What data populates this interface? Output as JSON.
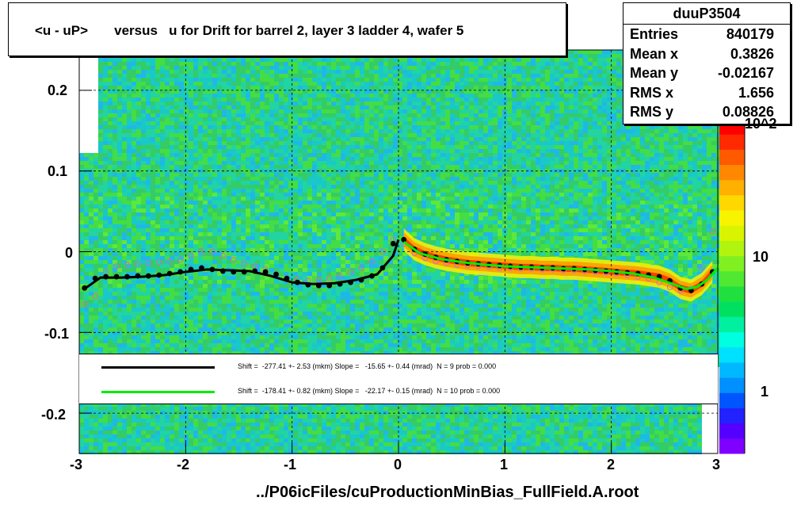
{
  "title": "<u - uP>       versus   u for Drift for barrel 2, layer 3 ladder 4, wafer 5",
  "stats": {
    "name": "duuP3504",
    "rows": [
      {
        "label": "Entries",
        "value": "840179"
      },
      {
        "label": "Mean x",
        "value": "0.3826"
      },
      {
        "label": "Mean y",
        "value": "-0.02167"
      },
      {
        "label": "RMS x",
        "value": "1.656"
      },
      {
        "label": "RMS y",
        "value": "0.08826"
      }
    ]
  },
  "fits": [
    {
      "color": "#000000",
      "text": "Shift =  -277.41 +- 2.53 (mkm) Slope =   -15.65 +- 0.44 (mrad)  N = 9 prob = 0.000"
    },
    {
      "color": "#00ee00",
      "text": "Shift =  -178.41 +- 0.82 (mkm) Slope =   -22.17 +- 0.15 (mrad)  N = 10 prob = 0.000"
    }
  ],
  "x_title": "../P06icFiles/cuProductionMinBias_FullField.A.root",
  "colors": {
    "band_red": "#ff2a00",
    "band_orange": "#ff9900",
    "band_yellow": "#ffee00",
    "background_green": "#33cc66"
  },
  "chart_data": {
    "type": "heatmap",
    "title": "<u - uP>       versus   u for Drift for barrel 2, layer 3 ladder 4, wafer 5",
    "xlabel": "../P06icFiles/cuProductionMinBias_FullField.A.root",
    "ylabel": "",
    "xlim": [
      -3,
      3
    ],
    "ylim": [
      -0.25,
      0.25
    ],
    "x_ticks": [
      "-3",
      "-2",
      "-1",
      "0",
      "1",
      "2",
      "3"
    ],
    "y_ticks": [
      "0.2",
      "0.1",
      "0",
      "-0.1",
      "-0.2"
    ],
    "colorbar": {
      "scale": "log",
      "ticks": [
        "1",
        "10",
        "10^2"
      ]
    },
    "grid": true,
    "series": [
      {
        "kind": "profile-left",
        "x": [
          -2.95,
          -2.85,
          -2.75,
          -2.65,
          -2.55,
          -2.45,
          -2.35,
          -2.25,
          -2.15,
          -2.05,
          -1.95,
          -1.85,
          -1.75,
          -1.65,
          -1.55,
          -1.45,
          -1.35,
          -1.25,
          -1.15,
          -1.05,
          -0.95,
          -0.85,
          -0.75,
          -0.65,
          -0.55,
          -0.45,
          -0.35,
          -0.25,
          -0.15,
          -0.05
        ],
        "y": [
          -0.045,
          -0.033,
          -0.031,
          -0.031,
          -0.031,
          -0.03,
          -0.03,
          -0.029,
          -0.027,
          -0.025,
          -0.022,
          -0.02,
          -0.022,
          -0.024,
          -0.025,
          -0.025,
          -0.024,
          -0.025,
          -0.028,
          -0.033,
          -0.038,
          -0.041,
          -0.042,
          -0.042,
          -0.04,
          -0.038,
          -0.035,
          -0.03,
          -0.02,
          0.01
        ]
      },
      {
        "kind": "profile-right",
        "x": [
          0.05,
          0.15,
          0.25,
          0.35,
          0.45,
          0.55,
          0.65,
          0.75,
          0.85,
          0.95,
          1.05,
          1.15,
          1.25,
          1.35,
          1.45,
          1.55,
          1.65,
          1.75,
          1.85,
          1.95,
          2.05,
          2.15,
          2.25,
          2.35,
          2.45,
          2.55,
          2.65,
          2.75,
          2.85,
          2.95
        ],
        "y": [
          0.015,
          0.003,
          -0.003,
          -0.007,
          -0.01,
          -0.012,
          -0.014,
          -0.015,
          -0.016,
          -0.017,
          -0.018,
          -0.019,
          -0.019,
          -0.02,
          -0.02,
          -0.021,
          -0.021,
          -0.022,
          -0.023,
          -0.024,
          -0.025,
          -0.026,
          -0.027,
          -0.029,
          -0.031,
          -0.036,
          -0.045,
          -0.048,
          -0.04,
          -0.025
        ]
      },
      {
        "kind": "open-markers",
        "x": [
          -2.95,
          -2.85,
          -2.75,
          -2.65,
          -2.55,
          -2.45,
          -2.35,
          -2.25,
          -2.15,
          -2.05,
          -1.95,
          -1.85,
          -1.75,
          -1.65,
          -1.55,
          -1.45,
          -1.35,
          -1.25,
          -1.15,
          -1.05,
          -0.95,
          -0.85,
          -0.75,
          -0.65,
          -0.55,
          -0.45,
          -0.35,
          -0.25,
          -0.15,
          -0.05,
          0.05,
          0.15,
          0.25,
          0.35,
          0.45,
          0.55,
          0.65,
          0.75,
          0.85,
          0.95,
          1.05,
          1.15,
          1.25,
          1.35,
          1.45,
          1.55,
          1.65,
          1.75,
          1.85,
          1.95,
          2.05,
          2.15,
          2.25,
          2.35,
          2.45,
          2.55,
          2.65,
          2.75,
          2.85,
          2.95
        ],
        "y": [
          -0.065,
          -0.055,
          -0.025,
          -0.018,
          -0.016,
          -0.015,
          -0.014,
          -0.013,
          -0.012,
          -0.01,
          -0.005,
          0.0,
          0.0,
          -0.005,
          -0.01,
          -0.015,
          -0.018,
          -0.022,
          -0.028,
          -0.033,
          -0.035,
          -0.036,
          -0.035,
          -0.033,
          -0.03,
          -0.025,
          -0.02,
          -0.012,
          0.0,
          0.015,
          0.01,
          -0.002,
          -0.008,
          -0.012,
          -0.014,
          -0.016,
          -0.017,
          -0.018,
          -0.019,
          -0.02,
          -0.02,
          -0.021,
          -0.021,
          -0.022,
          -0.022,
          -0.023,
          -0.023,
          -0.024,
          -0.025,
          -0.026,
          -0.027,
          -0.029,
          -0.031,
          -0.033,
          -0.038,
          -0.044,
          -0.048,
          -0.046,
          -0.02,
          0.025
        ]
      },
      {
        "kind": "fit-black",
        "x": [
          -2.95,
          -2.8,
          -2.6,
          -2.4,
          -2.2,
          -2.0,
          -1.8,
          -1.6,
          -1.4,
          -1.2,
          -1.0,
          -0.8,
          -0.6,
          -0.4,
          -0.2,
          -0.05,
          0.0
        ],
        "y": [
          -0.046,
          -0.032,
          -0.032,
          -0.031,
          -0.029,
          -0.025,
          -0.022,
          -0.023,
          -0.024,
          -0.03,
          -0.038,
          -0.04,
          -0.039,
          -0.035,
          -0.028,
          -0.005,
          0.015
        ]
      },
      {
        "kind": "fit-green",
        "x": [
          0.05,
          0.2,
          0.4,
          0.6,
          0.8,
          1.0,
          1.2,
          1.4,
          1.6,
          1.8,
          2.0,
          2.2,
          2.4,
          2.6,
          2.7,
          2.8,
          2.9,
          3.0
        ],
        "y": [
          0.012,
          -0.002,
          -0.009,
          -0.013,
          -0.016,
          -0.018,
          -0.019,
          -0.02,
          -0.021,
          -0.022,
          -0.024,
          -0.027,
          -0.032,
          -0.041,
          -0.046,
          -0.044,
          -0.035,
          -0.02
        ]
      }
    ]
  }
}
